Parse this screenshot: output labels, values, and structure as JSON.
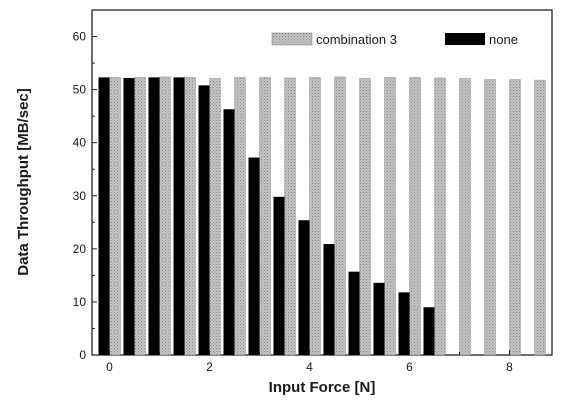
{
  "chart_data": {
    "type": "bar",
    "title": "",
    "xlabel": "Input Force [N]",
    "ylabel": "Data Throughput [MB/sec]",
    "x": [
      0,
      0.5,
      1,
      1.5,
      2,
      2.5,
      3,
      3.5,
      4,
      4.5,
      5,
      5.5,
      6,
      6.5,
      7,
      7.5,
      8,
      8.5
    ],
    "xlim": [
      -0.35,
      8.85
    ],
    "ylim": [
      0,
      65
    ],
    "xticks": [
      "0",
      "2",
      "4",
      "6",
      "8"
    ],
    "yticks": [
      "0",
      "10",
      "20",
      "30",
      "40",
      "50",
      "60"
    ],
    "grid": false,
    "legend_position": "top-right",
    "series": [
      {
        "name": "combination 3",
        "color": "#b8b8b8",
        "pattern": "dotted-gray",
        "values": [
          52.3,
          52.3,
          52.4,
          52.3,
          52.1,
          52.3,
          52.3,
          52.2,
          52.3,
          52.4,
          52.1,
          52.3,
          52.3,
          52.2,
          52.1,
          51.9,
          51.9,
          51.8
        ]
      },
      {
        "name": "none",
        "color": "#000000",
        "values": [
          52.3,
          52.2,
          52.3,
          52.3,
          50.8,
          46.3,
          37.2,
          29.8,
          25.4,
          20.9,
          15.7,
          13.6,
          11.8,
          9.0,
          null,
          null,
          null,
          null
        ]
      }
    ]
  }
}
